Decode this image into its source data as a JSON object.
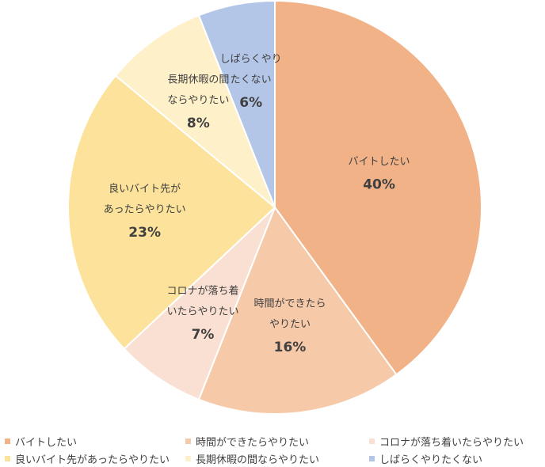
{
  "chart_data": {
    "type": "pie",
    "slices": [
      {
        "label_lines": [
          "バイトしたい"
        ],
        "value": 40,
        "display": "40%",
        "color": "#f1b287",
        "legend": "バイトしたい"
      },
      {
        "label_lines": [
          "時間ができたら",
          "やりたい"
        ],
        "value": 16,
        "display": "16%",
        "color": "#f6c9a9",
        "legend": "時間ができたらやりたい"
      },
      {
        "label_lines": [
          "コロナが落ち着",
          "いたらやりたい"
        ],
        "value": 7,
        "display": "7%",
        "color": "#f9e0d2",
        "legend": "コロナが落ち着いたらやりたい"
      },
      {
        "label_lines": [
          "良いバイト先が",
          "あったらやりたい"
        ],
        "value": 23,
        "display": "23%",
        "color": "#fce29a",
        "legend": "良いバイト先があったらやりたい"
      },
      {
        "label_lines": [
          "長期休暇の間",
          "ならやりたい"
        ],
        "value": 8,
        "display": "8%",
        "color": "#fef0c8",
        "legend": "長期休暇の間ならやりたい"
      },
      {
        "label_lines": [
          "しばらくやり",
          "たくない"
        ],
        "value": 6,
        "display": "6%",
        "color": "#b4c6e7",
        "legend": "しばらくやりたくない"
      }
    ],
    "start_angle_deg": 0,
    "direction": "clockwise",
    "legend_position": "bottom"
  }
}
